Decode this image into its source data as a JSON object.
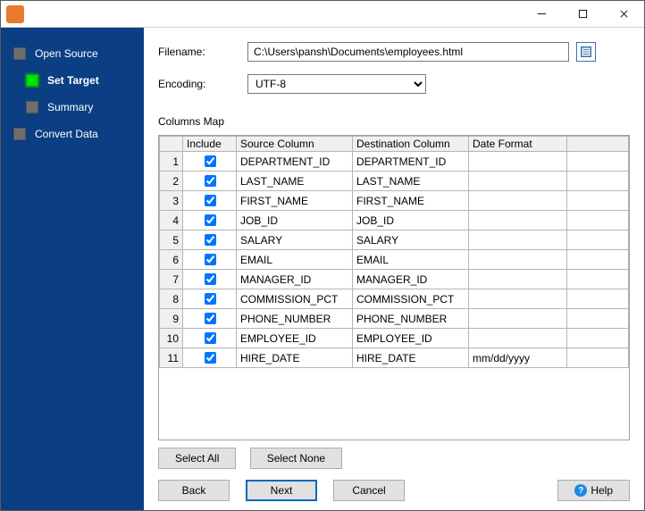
{
  "window": {
    "min_tooltip": "Minimize",
    "max_tooltip": "Maximize",
    "close_tooltip": "Close"
  },
  "sidebar": {
    "items": [
      {
        "label": "Open Source",
        "active": false,
        "child": false
      },
      {
        "label": "Set Target",
        "active": true,
        "child": true
      },
      {
        "label": "Summary",
        "active": false,
        "child": true
      },
      {
        "label": "Convert Data",
        "active": false,
        "child": false
      }
    ]
  },
  "form": {
    "filename_label": "Filename:",
    "filename_value": "C:\\Users\\pansh\\Documents\\employees.html",
    "encoding_label": "Encoding:",
    "encoding_value": "UTF-8",
    "encoding_options": [
      "UTF-8"
    ]
  },
  "columns_map": {
    "title": "Columns Map",
    "headers": {
      "include": "Include",
      "source": "Source Column",
      "dest": "Destination Column",
      "format": "Date Format"
    },
    "rows": [
      {
        "n": 1,
        "include": true,
        "source": "DEPARTMENT_ID",
        "dest": "DEPARTMENT_ID",
        "format": ""
      },
      {
        "n": 2,
        "include": true,
        "source": "LAST_NAME",
        "dest": "LAST_NAME",
        "format": ""
      },
      {
        "n": 3,
        "include": true,
        "source": "FIRST_NAME",
        "dest": "FIRST_NAME",
        "format": ""
      },
      {
        "n": 4,
        "include": true,
        "source": "JOB_ID",
        "dest": "JOB_ID",
        "format": ""
      },
      {
        "n": 5,
        "include": true,
        "source": "SALARY",
        "dest": "SALARY",
        "format": ""
      },
      {
        "n": 6,
        "include": true,
        "source": "EMAIL",
        "dest": "EMAIL",
        "format": ""
      },
      {
        "n": 7,
        "include": true,
        "source": "MANAGER_ID",
        "dest": "MANAGER_ID",
        "format": ""
      },
      {
        "n": 8,
        "include": true,
        "source": "COMMISSION_PCT",
        "dest": "COMMISSION_PCT",
        "format": ""
      },
      {
        "n": 9,
        "include": true,
        "source": "PHONE_NUMBER",
        "dest": "PHONE_NUMBER",
        "format": ""
      },
      {
        "n": 10,
        "include": true,
        "source": "EMPLOYEE_ID",
        "dest": "EMPLOYEE_ID",
        "format": ""
      },
      {
        "n": 11,
        "include": true,
        "source": "HIRE_DATE",
        "dest": "HIRE_DATE",
        "format": "mm/dd/yyyy"
      }
    ]
  },
  "buttons": {
    "select_all": "Select All",
    "select_none": "Select None",
    "back": "Back",
    "next": "Next",
    "cancel": "Cancel",
    "help": "Help"
  },
  "colors": {
    "sidebar_bg": "#0b3e82",
    "active_dot": "#00e000",
    "inactive_dot": "#6e6e6e",
    "primary_border": "#0a66c2",
    "grid_border": "#b5b5b5",
    "header_bg": "#f0f0f0",
    "app_icon": "#e87b2e"
  }
}
